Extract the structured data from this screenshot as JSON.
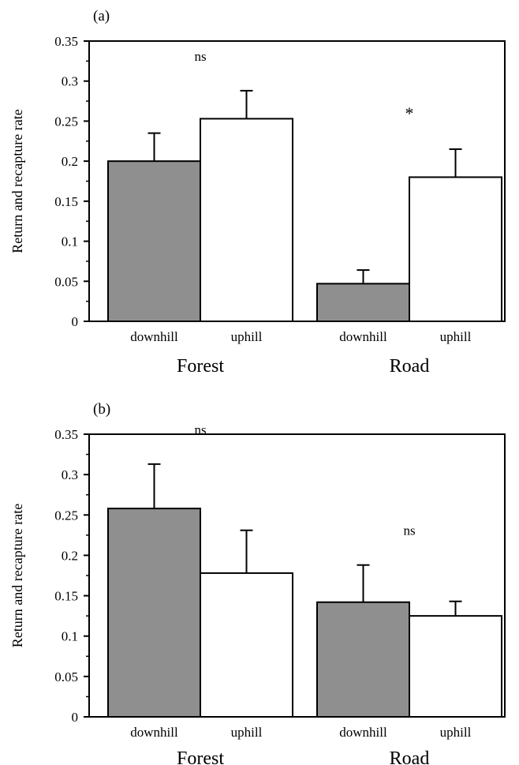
{
  "colors": {
    "downhill": "#8f8f8f",
    "uphill": "#ffffff",
    "ink": "#000000"
  },
  "chart_data": [
    {
      "type": "bar",
      "panel_label": "(a)",
      "ylabel": "Return and recapture rate",
      "ylim": [
        0,
        0.35
      ],
      "yticks": [
        0,
        0.05,
        0.1,
        0.15,
        0.2,
        0.25,
        0.3,
        0.35
      ],
      "ytick_labels": [
        "0",
        "0.05",
        "0.1",
        "0.15",
        "0.2",
        "0.25",
        "0.3",
        "0.35"
      ],
      "groups": [
        {
          "label": "Forest",
          "bars": [
            {
              "label": "downhill",
              "value": 0.2,
              "error": 0.035,
              "fill": "downhill"
            },
            {
              "label": "uphill",
              "value": 0.253,
              "error": 0.035,
              "fill": "uphill"
            }
          ],
          "annotation": "ns"
        },
        {
          "label": "Road",
          "bars": [
            {
              "label": "downhill",
              "value": 0.047,
              "error": 0.017,
              "fill": "downhill"
            },
            {
              "label": "uphill",
              "value": 0.18,
              "error": 0.035,
              "fill": "uphill"
            }
          ],
          "annotation": "*"
        }
      ]
    },
    {
      "type": "bar",
      "panel_label": "(b)",
      "ylabel": "Return and recapture rate",
      "ylim": [
        0,
        0.35
      ],
      "yticks": [
        0,
        0.05,
        0.1,
        0.15,
        0.2,
        0.25,
        0.3,
        0.35
      ],
      "ytick_labels": [
        "0",
        "0.05",
        "0.1",
        "0.15",
        "0.2",
        "0.25",
        "0.3",
        "0.35"
      ],
      "groups": [
        {
          "label": "Forest",
          "bars": [
            {
              "label": "downhill",
              "value": 0.258,
              "error": 0.055,
              "fill": "downhill"
            },
            {
              "label": "uphill",
              "value": 0.178,
              "error": 0.053,
              "fill": "uphill"
            }
          ],
          "annotation": "ns"
        },
        {
          "label": "Road",
          "bars": [
            {
              "label": "downhill",
              "value": 0.142,
              "error": 0.046,
              "fill": "downhill"
            },
            {
              "label": "uphill",
              "value": 0.125,
              "error": 0.018,
              "fill": "uphill"
            }
          ],
          "annotation": "ns"
        }
      ]
    }
  ]
}
